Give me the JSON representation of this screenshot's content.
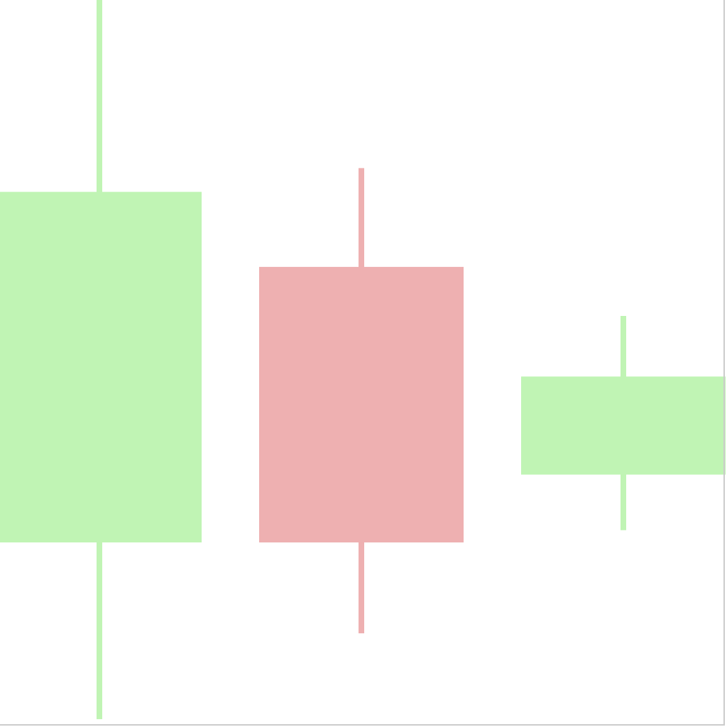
{
  "chart_data": {
    "type": "candlestick",
    "colors": {
      "up": "#c0f4b4",
      "down": "#eeb0b1",
      "frame": "#cccccc",
      "background": "#ffffff"
    },
    "candles": [
      {
        "index": 0,
        "open": 24.8,
        "close": 73.4,
        "high": 100.0,
        "low": 0.3
      },
      {
        "index": 1,
        "open": 63.0,
        "close": 24.8,
        "high": 76.7,
        "low": 12.2
      },
      {
        "index": 2,
        "open": 34.2,
        "close": 47.8,
        "high": 56.2,
        "low": 26.5
      }
    ],
    "ylim": [
      0,
      100
    ],
    "grid": false,
    "legend": "none"
  }
}
